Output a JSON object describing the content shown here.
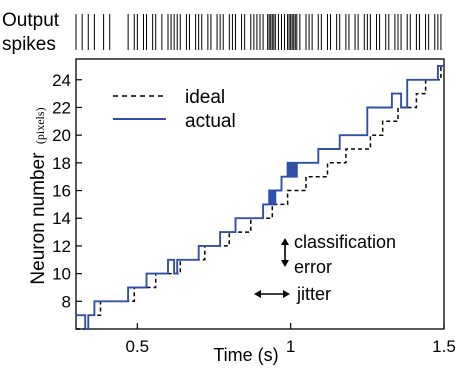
{
  "chart_data": {
    "type": "line",
    "spikes_label_lines": [
      "Output",
      "spikes"
    ],
    "xlabel": "Time (s)",
    "ylabel_main": "Neuron number",
    "ylabel_unit": "(pixels)",
    "xlim": [
      0.3,
      1.5
    ],
    "ylim": [
      6,
      25.5
    ],
    "xticks": [
      {
        "value": 0.5,
        "label": "0.5"
      },
      {
        "value": 1.0,
        "label": "1"
      },
      {
        "value": 1.5,
        "label": "1.5"
      }
    ],
    "yticks": [
      {
        "value": 8,
        "label": "8"
      },
      {
        "value": 10,
        "label": "10"
      },
      {
        "value": 12,
        "label": "12"
      },
      {
        "value": 14,
        "label": "14"
      },
      {
        "value": 16,
        "label": "16"
      },
      {
        "value": 18,
        "label": "18"
      },
      {
        "value": 20,
        "label": "20"
      },
      {
        "value": 22,
        "label": "22"
      },
      {
        "value": 24,
        "label": "24"
      }
    ],
    "legend": {
      "placement": "top-left",
      "entries": [
        {
          "label": "ideal",
          "style": "dashed",
          "color": "#000000"
        },
        {
          "label": "actual",
          "style": "solid",
          "color": "#3050a8"
        }
      ]
    },
    "annotations": {
      "classification_error_lines": [
        "classification",
        "error"
      ],
      "jitter": "jitter"
    },
    "series": [
      {
        "name": "ideal",
        "style": "step-dashed",
        "color": "#000000",
        "points": [
          [
            0.3,
            6
          ],
          [
            0.34,
            6
          ],
          [
            0.34,
            7
          ],
          [
            0.38,
            7
          ],
          [
            0.38,
            8
          ],
          [
            0.49,
            8
          ],
          [
            0.49,
            9
          ],
          [
            0.56,
            9
          ],
          [
            0.56,
            10
          ],
          [
            0.64,
            10
          ],
          [
            0.64,
            11
          ],
          [
            0.72,
            11
          ],
          [
            0.72,
            12
          ],
          [
            0.8,
            12
          ],
          [
            0.8,
            13
          ],
          [
            0.87,
            13
          ],
          [
            0.87,
            14
          ],
          [
            0.94,
            14
          ],
          [
            0.94,
            15
          ],
          [
            0.99,
            15
          ],
          [
            0.99,
            16
          ],
          [
            1.05,
            16
          ],
          [
            1.05,
            17
          ],
          [
            1.12,
            17
          ],
          [
            1.12,
            18
          ],
          [
            1.18,
            18
          ],
          [
            1.18,
            19
          ],
          [
            1.26,
            19
          ],
          [
            1.26,
            20
          ],
          [
            1.3,
            20
          ],
          [
            1.3,
            21
          ],
          [
            1.35,
            21
          ],
          [
            1.35,
            22
          ],
          [
            1.41,
            22
          ],
          [
            1.41,
            23
          ],
          [
            1.44,
            23
          ],
          [
            1.44,
            24
          ],
          [
            1.49,
            24
          ],
          [
            1.49,
            25
          ],
          [
            1.5,
            25
          ]
        ]
      },
      {
        "name": "actual",
        "style": "step-solid",
        "color": "#3050a8",
        "points": [
          [
            0.3,
            7
          ],
          [
            0.33,
            7
          ],
          [
            0.33,
            6
          ],
          [
            0.34,
            6
          ],
          [
            0.34,
            7
          ],
          [
            0.36,
            7
          ],
          [
            0.36,
            8
          ],
          [
            0.47,
            8
          ],
          [
            0.47,
            9
          ],
          [
            0.53,
            9
          ],
          [
            0.53,
            10
          ],
          [
            0.6,
            10
          ],
          [
            0.6,
            11
          ],
          [
            0.62,
            11
          ],
          [
            0.62,
            10
          ],
          [
            0.63,
            10
          ],
          [
            0.63,
            11
          ],
          [
            0.7,
            11
          ],
          [
            0.7,
            12
          ],
          [
            0.77,
            12
          ],
          [
            0.77,
            13
          ],
          [
            0.82,
            13
          ],
          [
            0.82,
            14
          ],
          [
            0.91,
            14
          ],
          [
            0.91,
            15
          ],
          [
            0.93,
            15
          ],
          [
            0.93,
            16
          ],
          [
            0.935,
            16
          ],
          [
            0.935,
            15
          ],
          [
            0.94,
            15
          ],
          [
            0.94,
            16
          ],
          [
            0.945,
            16
          ],
          [
            0.945,
            15
          ],
          [
            0.95,
            15
          ],
          [
            0.95,
            16
          ],
          [
            0.97,
            16
          ],
          [
            0.97,
            17
          ],
          [
            0.99,
            17
          ],
          [
            0.99,
            18
          ],
          [
            0.995,
            18
          ],
          [
            0.995,
            17
          ],
          [
            1.0,
            17
          ],
          [
            1.0,
            18
          ],
          [
            1.005,
            18
          ],
          [
            1.005,
            17
          ],
          [
            1.01,
            17
          ],
          [
            1.01,
            18
          ],
          [
            1.015,
            18
          ],
          [
            1.015,
            17
          ],
          [
            1.02,
            17
          ],
          [
            1.02,
            18
          ],
          [
            1.09,
            18
          ],
          [
            1.09,
            19
          ],
          [
            1.16,
            19
          ],
          [
            1.16,
            20
          ],
          [
            1.25,
            20
          ],
          [
            1.25,
            22
          ],
          [
            1.33,
            22
          ],
          [
            1.33,
            23
          ],
          [
            1.36,
            23
          ],
          [
            1.36,
            22
          ],
          [
            1.38,
            22
          ],
          [
            1.38,
            24
          ],
          [
            1.48,
            24
          ],
          [
            1.48,
            25
          ],
          [
            1.5,
            25
          ]
        ]
      }
    ],
    "spike_times": [
      0.3,
      0.32,
      0.34,
      0.36,
      0.39,
      0.41,
      0.47,
      0.49,
      0.5,
      0.52,
      0.53,
      0.55,
      0.56,
      0.58,
      0.6,
      0.61,
      0.62,
      0.63,
      0.64,
      0.66,
      0.67,
      0.69,
      0.7,
      0.71,
      0.73,
      0.74,
      0.76,
      0.77,
      0.78,
      0.8,
      0.81,
      0.82,
      0.84,
      0.85,
      0.87,
      0.88,
      0.89,
      0.9,
      0.91,
      0.925,
      0.93,
      0.935,
      0.94,
      0.945,
      0.95,
      0.96,
      0.97,
      0.98,
      0.99,
      0.995,
      1.0,
      1.005,
      1.01,
      1.015,
      1.02,
      1.03,
      1.05,
      1.06,
      1.07,
      1.09,
      1.1,
      1.12,
      1.13,
      1.15,
      1.16,
      1.18,
      1.19,
      1.21,
      1.22,
      1.24,
      1.25,
      1.26,
      1.28,
      1.29,
      1.31,
      1.32,
      1.34,
      1.35,
      1.36,
      1.38,
      1.39,
      1.41,
      1.42,
      1.44,
      1.45,
      1.47,
      1.48,
      1.49
    ]
  }
}
